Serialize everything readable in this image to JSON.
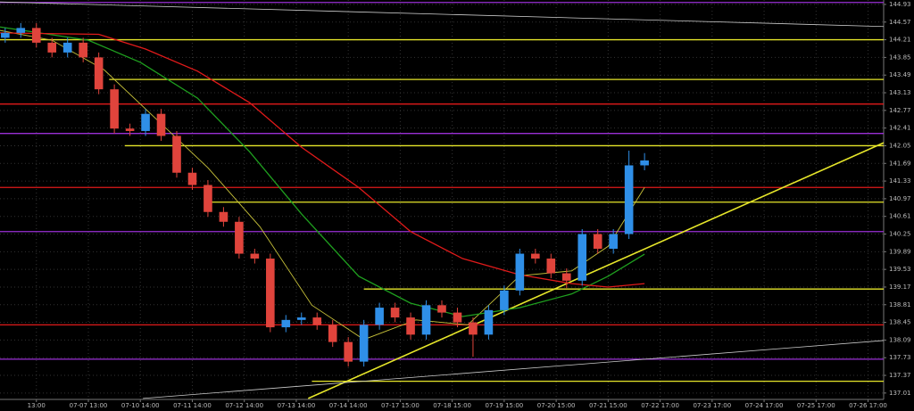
{
  "chart_data": {
    "type": "candlestick",
    "x": [
      1,
      4,
      7,
      10,
      13,
      16,
      19,
      22,
      25,
      28,
      31,
      34,
      37,
      40,
      43,
      46,
      49,
      52,
      55,
      58,
      61,
      64,
      67,
      70,
      73,
      76,
      79,
      82,
      85,
      88,
      91,
      94,
      97,
      100,
      103,
      106,
      109,
      112,
      115,
      118,
      121,
      124
    ],
    "open": [
      144.25,
      144.35,
      144.45,
      144.15,
      143.95,
      144.15,
      143.85,
      143.2,
      142.4,
      142.35,
      142.7,
      142.25,
      141.5,
      141.25,
      140.7,
      140.5,
      139.85,
      139.75,
      138.35,
      138.5,
      138.55,
      138.4,
      138.05,
      137.65,
      138.4,
      138.75,
      138.55,
      138.2,
      138.8,
      138.65,
      138.45,
      138.2,
      138.7,
      139.1,
      139.85,
      139.75,
      139.45,
      139.3,
      140.25,
      139.95,
      140.25,
      141.65
    ],
    "high": [
      144.45,
      144.55,
      144.55,
      144.25,
      144.25,
      144.25,
      143.95,
      143.3,
      142.5,
      142.8,
      142.8,
      142.35,
      141.6,
      141.35,
      140.8,
      140.6,
      139.95,
      139.85,
      138.6,
      138.65,
      138.65,
      138.5,
      138.15,
      138.5,
      138.85,
      138.85,
      138.65,
      138.9,
      138.9,
      138.75,
      138.55,
      138.8,
      139.2,
      139.95,
      139.95,
      139.85,
      139.55,
      140.35,
      140.35,
      140.35,
      141.95,
      141.9
    ],
    "low": [
      144.15,
      144.25,
      144.05,
      143.85,
      143.85,
      143.75,
      143.1,
      142.3,
      142.25,
      142.25,
      142.15,
      141.4,
      141.15,
      140.6,
      140.4,
      139.75,
      139.65,
      138.25,
      138.25,
      138.4,
      138.3,
      137.95,
      137.55,
      137.55,
      138.3,
      138.45,
      138.1,
      138.1,
      138.55,
      138.35,
      137.75,
      138.1,
      138.6,
      139,
      139.65,
      139.35,
      139.15,
      139.2,
      139.85,
      139.85,
      140.15,
      141.55
    ],
    "close": [
      144.35,
      144.45,
      144.15,
      143.95,
      144.15,
      143.85,
      143.2,
      142.4,
      142.35,
      142.7,
      142.25,
      141.5,
      141.25,
      140.7,
      140.5,
      139.85,
      139.75,
      138.35,
      138.5,
      138.55,
      138.4,
      138.05,
      137.65,
      138.4,
      138.75,
      138.55,
      138.2,
      138.8,
      138.65,
      138.45,
      138.2,
      138.7,
      139.1,
      139.85,
      139.75,
      139.45,
      139.3,
      140.25,
      139.95,
      140.25,
      141.65,
      141.75
    ],
    "up_color": "#2f8fe8",
    "down_color": "#e0443c",
    "moving_averages": [
      {
        "color": "#c8c23a",
        "x": [
          0,
          10,
          20,
          30,
          40,
          50,
          60,
          70,
          80,
          90,
          100,
          110,
          117,
          124
        ],
        "values": [
          144.4,
          144.2,
          143.6,
          142.6,
          141.6,
          140.4,
          138.8,
          138.1,
          138.5,
          138.4,
          139.4,
          139.5,
          140,
          141.2
        ]
      },
      {
        "color": "#1fa01f",
        "x": [
          0,
          17,
          27,
          38,
          48,
          58,
          69,
          79,
          89,
          100,
          110,
          117,
          124
        ],
        "values": [
          144.47,
          144.2,
          143.75,
          143.02,
          141.93,
          140.66,
          139.39,
          138.84,
          138.57,
          138.75,
          139.03,
          139.39,
          139.84
        ]
      },
      {
        "color": "#e01a1a",
        "x": [
          0,
          19,
          28,
          38,
          48,
          58,
          69,
          79,
          89,
          100,
          110,
          117,
          124
        ],
        "values": [
          144.35,
          144.32,
          144.02,
          143.57,
          142.93,
          142.02,
          141.2,
          140.3,
          139.75,
          139.42,
          139.24,
          139.17,
          139.24
        ]
      }
    ],
    "levels": [
      {
        "value": 144.97,
        "color": "#9a2fd6",
        "x_start": 0
      },
      {
        "value": 144.21,
        "color": "#e6e62a",
        "x_start": 0
      },
      {
        "value": 143.4,
        "color": "#e6e62a",
        "x_start": 21
      },
      {
        "value": 142.9,
        "color": "#e01a1a",
        "x_start": 0
      },
      {
        "value": 142.3,
        "color": "#9a2fd6",
        "x_start": 0
      },
      {
        "value": 142.05,
        "color": "#e6e62a",
        "x_start": 24
      },
      {
        "value": 141.2,
        "color": "#e01a1a",
        "x_start": 0
      },
      {
        "value": 140.9,
        "color": "#e6e62a",
        "x_start": 40
      },
      {
        "value": 140.3,
        "color": "#9a2fd6",
        "x_start": 0
      },
      {
        "value": 139.13,
        "color": "#e6e62a",
        "x_start": 70
      },
      {
        "value": 138.4,
        "color": "#e01a1a",
        "x_start": 0
      },
      {
        "value": 137.7,
        "color": "#9a2fd6",
        "x_start": 0
      },
      {
        "value": 137.25,
        "color": "#e6e62a",
        "x_start": 60
      }
    ],
    "trendlines": [
      {
        "color": "#e6e62a",
        "x": [
          59.3,
          170
        ],
        "values": [
          136.9,
          142.11
        ]
      },
      {
        "color": "#cccccc",
        "x": [
          0,
          170
        ],
        "values": [
          144.98,
          144.48
        ]
      },
      {
        "color": "#cccccc",
        "x": [
          27.5,
          170
        ],
        "values": [
          136.9,
          138.08
        ]
      }
    ],
    "xlim": [
      0,
      170
    ],
    "xticks": [
      {
        "value": 7,
        "label": "13:00"
      },
      {
        "value": 17,
        "label": "07-07 13:00"
      },
      {
        "value": 27,
        "label": "07-10 14:00"
      },
      {
        "value": 37,
        "label": "07-11 14:00"
      },
      {
        "value": 47,
        "label": "07-12 14:00"
      },
      {
        "value": 57,
        "label": "07-13 14:00"
      },
      {
        "value": 67,
        "label": "07-14 14:00"
      },
      {
        "value": 77,
        "label": "07-17 15:00"
      },
      {
        "value": 87,
        "label": "07-18 15:00"
      },
      {
        "value": 97,
        "label": "07-19 15:00"
      },
      {
        "value": 107,
        "label": "07-20 15:00"
      },
      {
        "value": 117,
        "label": "07-21 15:00"
      },
      {
        "value": 127,
        "label": "07-22 17:00"
      },
      {
        "value": 137,
        "label": "07-23 17:00"
      },
      {
        "value": 147,
        "label": "07-24 17:00"
      },
      {
        "value": 157,
        "label": "07-25 17:00"
      },
      {
        "value": 167,
        "label": "07-26 17:00"
      }
    ],
    "ylim": [
      136.88,
      145.02
    ],
    "yticks": [
      144.93,
      144.57,
      144.21,
      143.85,
      143.49,
      143.13,
      142.77,
      142.41,
      142.05,
      141.69,
      141.33,
      140.97,
      140.61,
      140.25,
      139.89,
      139.53,
      139.17,
      138.81,
      138.45,
      138.09,
      137.73,
      137.37,
      137.01
    ],
    "grid": true
  }
}
